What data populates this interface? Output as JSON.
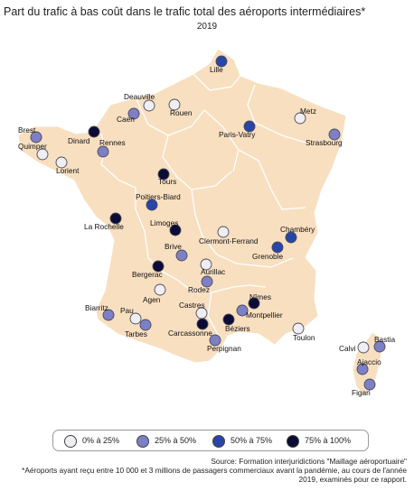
{
  "title": "Part du trafic à bas coût dans le trafic total des aéroports intermédiaires*",
  "subtitle": "2019",
  "colors": {
    "land": "#f8dfc0",
    "border": "#ffffff",
    "c0_25": "#eeeef3",
    "c25_50": "#7d80c4",
    "c50_75": "#2846a8",
    "c75_100": "#0b0b35"
  },
  "legend": [
    {
      "label": "0% à 25%",
      "color_key": "c0_25"
    },
    {
      "label": "25% à 50%",
      "color_key": "c25_50"
    },
    {
      "label": "50% à 75%",
      "color_key": "c50_75"
    },
    {
      "label": "75% à 100%",
      "color_key": "c75_100"
    }
  ],
  "airports": [
    {
      "name": "Lille",
      "cls": "c50_75"
    },
    {
      "name": "Deauville",
      "cls": "c0_25"
    },
    {
      "name": "Rouen",
      "cls": "c0_25"
    },
    {
      "name": "Caen",
      "cls": "c25_50"
    },
    {
      "name": "Metz",
      "cls": "c0_25"
    },
    {
      "name": "Brest",
      "cls": "c25_50"
    },
    {
      "name": "Quimper",
      "cls": "c0_25"
    },
    {
      "name": "Dinard",
      "cls": "c75_100"
    },
    {
      "name": "Rennes",
      "cls": "c25_50"
    },
    {
      "name": "Paris-Vatry",
      "cls": "c50_75"
    },
    {
      "name": "Strasbourg",
      "cls": "c25_50"
    },
    {
      "name": "Lorient",
      "cls": "c0_25"
    },
    {
      "name": "Tours",
      "cls": "c75_100"
    },
    {
      "name": "Poitiers-Biard",
      "cls": "c50_75"
    },
    {
      "name": "La Rochelle",
      "cls": "c75_100"
    },
    {
      "name": "Limoges",
      "cls": "c75_100"
    },
    {
      "name": "Clermont-Ferrand",
      "cls": "c0_25"
    },
    {
      "name": "Chambéry",
      "cls": "c50_75"
    },
    {
      "name": "Grenoble",
      "cls": "c50_75"
    },
    {
      "name": "Brive",
      "cls": "c25_50"
    },
    {
      "name": "Bergerac",
      "cls": "c75_100"
    },
    {
      "name": "Aurillac",
      "cls": "c0_25"
    },
    {
      "name": "Agen",
      "cls": "c0_25"
    },
    {
      "name": "Rodez",
      "cls": "c25_50"
    },
    {
      "name": "Nîmes",
      "cls": "c75_100"
    },
    {
      "name": "Biarritz",
      "cls": "c25_50"
    },
    {
      "name": "Castres",
      "cls": "c0_25"
    },
    {
      "name": "Montpellier",
      "cls": "c25_50"
    },
    {
      "name": "Pau",
      "cls": "c0_25"
    },
    {
      "name": "Tarbes",
      "cls": "c25_50"
    },
    {
      "name": "Carcassonne",
      "cls": "c75_100"
    },
    {
      "name": "Béziers",
      "cls": "c75_100"
    },
    {
      "name": "Perpignan",
      "cls": "c25_50"
    },
    {
      "name": "Toulon",
      "cls": "c0_25"
    },
    {
      "name": "Calvi",
      "cls": "c0_25"
    },
    {
      "name": "Bastia",
      "cls": "c25_50"
    },
    {
      "name": "Ajaccio",
      "cls": "c25_50"
    },
    {
      "name": "Figari",
      "cls": "c25_50"
    }
  ],
  "source": "Source: Formation interjuridictions \"Maillage aéroportuaire\"",
  "note": "*Aéroports ayant reçu entre 10 000 et 3 millions de passagers commerciaux avant la pandémie, au cours de l'année 2019, examinés pour ce rapport."
}
